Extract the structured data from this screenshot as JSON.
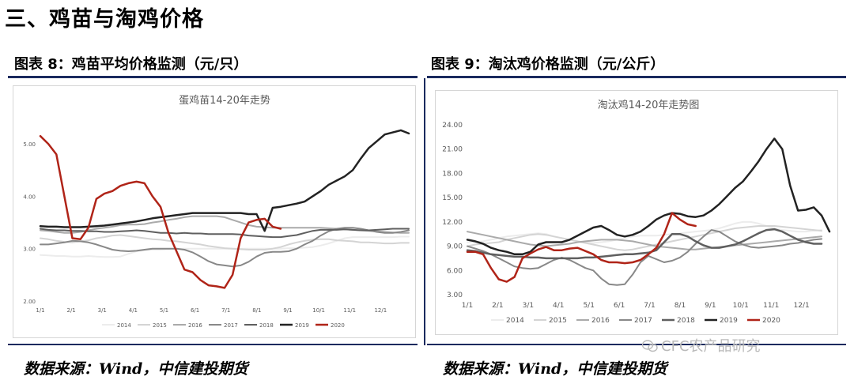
{
  "section_title": "三、鸡苗与淘鸡价格",
  "charts_meta": [
    {
      "figure_title": "图表 8：鸡苗平均价格监测（元/只）",
      "source": "数据来源：Wind，中信建投期货"
    },
    {
      "figure_title": "图表 9：淘汰鸡价格监测（元/公斤）",
      "source": "数据来源：Wind，中信建投期货"
    }
  ],
  "watermark": "CFC农产品研究",
  "chart_data": [
    {
      "type": "line",
      "title": "蛋鸡苗14-20年走势",
      "ylim": [
        2.0,
        5.5
      ],
      "y_ticks": [
        "2.00",
        "3.00",
        "4.00",
        "5.00"
      ],
      "x_ticks": [
        "1/1",
        "2/1",
        "3/1",
        "4/1",
        "5/1",
        "6/1",
        "7/1",
        "8/1",
        "9/1",
        "10/1",
        "11/1",
        "12/1"
      ],
      "legend_position": "bottom",
      "series": [
        {
          "name": "2014",
          "color": "#ececec",
          "width": 2,
          "values": [
            2.88,
            2.87,
            2.86,
            2.86,
            2.85,
            2.85,
            2.86,
            2.85,
            2.84,
            2.84,
            2.85,
            2.9,
            2.95,
            2.97,
            2.98,
            2.98,
            2.99,
            3.0,
            3.0,
            3.0,
            3.0,
            3.0,
            3.0,
            3.0,
            3.0,
            3.0,
            3.0,
            3.0,
            3.0,
            3.0,
            3.0,
            3.01,
            3.01,
            3.02,
            3.03,
            3.06,
            3.1,
            3.15,
            3.2,
            3.22,
            3.22,
            3.22,
            3.22,
            3.22,
            3.22,
            3.23,
            3.23
          ]
        },
        {
          "name": "2015",
          "color": "#d4d4d4",
          "width": 2,
          "values": [
            3.2,
            3.18,
            3.15,
            3.13,
            3.12,
            3.14,
            3.16,
            3.2,
            3.22,
            3.25,
            3.26,
            3.24,
            3.22,
            3.2,
            3.18,
            3.17,
            3.15,
            3.14,
            3.12,
            3.1,
            3.08,
            3.05,
            3.03,
            3.01,
            3.0,
            2.99,
            2.98,
            2.98,
            2.98,
            3.0,
            3.03,
            3.08,
            3.12,
            3.15,
            3.17,
            3.18,
            3.18,
            3.16,
            3.15,
            3.14,
            3.12,
            3.12,
            3.11,
            3.1,
            3.1,
            3.11,
            3.11
          ]
        },
        {
          "name": "2016",
          "color": "#aaaaaa",
          "width": 2,
          "values": [
            3.35,
            3.34,
            3.32,
            3.3,
            3.3,
            3.32,
            3.35,
            3.38,
            3.4,
            3.42,
            3.45,
            3.46,
            3.46,
            3.47,
            3.5,
            3.52,
            3.55,
            3.57,
            3.6,
            3.62,
            3.62,
            3.62,
            3.62,
            3.6,
            3.55,
            3.5,
            3.45,
            3.42,
            3.41,
            3.4,
            3.4,
            3.4,
            3.4,
            3.4,
            3.4,
            3.4,
            3.39,
            3.38,
            3.37,
            3.36,
            3.35,
            3.34,
            3.33,
            3.32,
            3.31,
            3.3,
            3.3
          ]
        },
        {
          "name": "2017",
          "color": "#888888",
          "width": 2,
          "values": [
            3.08,
            3.08,
            3.1,
            3.12,
            3.15,
            3.14,
            3.12,
            3.08,
            3.03,
            2.98,
            2.96,
            2.95,
            2.96,
            2.98,
            3.0,
            3.0,
            3.0,
            3.0,
            2.98,
            2.93,
            2.85,
            2.76,
            2.7,
            2.68,
            2.66,
            2.68,
            2.75,
            2.85,
            2.92,
            2.94,
            2.94,
            2.95,
            3.0,
            3.08,
            3.15,
            3.25,
            3.33,
            3.38,
            3.4,
            3.4,
            3.38,
            3.35,
            3.32,
            3.3,
            3.3,
            3.32,
            3.35
          ]
        },
        {
          "name": "2018",
          "color": "#5f5f5f",
          "width": 2,
          "values": [
            3.38,
            3.36,
            3.35,
            3.35,
            3.34,
            3.34,
            3.33,
            3.33,
            3.32,
            3.32,
            3.33,
            3.34,
            3.35,
            3.34,
            3.32,
            3.3,
            3.3,
            3.29,
            3.3,
            3.29,
            3.29,
            3.28,
            3.28,
            3.28,
            3.28,
            3.27,
            3.25,
            3.24,
            3.23,
            3.22,
            3.22,
            3.24,
            3.26,
            3.3,
            3.34,
            3.36,
            3.36,
            3.36,
            3.37,
            3.36,
            3.35,
            3.35,
            3.36,
            3.37,
            3.38,
            3.38,
            3.38
          ]
        },
        {
          "name": "2019",
          "color": "#222222",
          "width": 2.5,
          "values": [
            3.43,
            3.42,
            3.42,
            3.41,
            3.41,
            3.41,
            3.42,
            3.43,
            3.44,
            3.46,
            3.48,
            3.5,
            3.52,
            3.55,
            3.58,
            3.6,
            3.62,
            3.64,
            3.66,
            3.68,
            3.68,
            3.68,
            3.68,
            3.68,
            3.68,
            3.68,
            3.66,
            3.66,
            3.34,
            3.78,
            3.8,
            3.83,
            3.86,
            3.9,
            4.0,
            4.1,
            4.22,
            4.3,
            4.38,
            4.5,
            4.72,
            4.92,
            5.05,
            5.18,
            5.22,
            5.26,
            5.2
          ]
        },
        {
          "name": "2020",
          "color": "#b02418",
          "width": 2.5,
          "values": [
            5.15,
            5.0,
            4.8,
            4.0,
            3.2,
            3.18,
            3.4,
            3.95,
            4.05,
            4.1,
            4.2,
            4.25,
            4.28,
            4.25,
            4.0,
            3.8,
            3.3,
            2.95,
            2.6,
            2.55,
            2.4,
            2.3,
            2.28,
            2.25,
            2.5,
            3.2,
            3.5,
            3.55,
            3.57,
            3.42,
            3.38
          ]
        }
      ]
    },
    {
      "type": "line",
      "title": "淘汰鸡14-20年走势图",
      "ylim": [
        3.0,
        24.0
      ],
      "y_ticks": [
        "3.00",
        "6.00",
        "9.00",
        "12.00",
        "15.00",
        "18.00",
        "21.00",
        "24.00"
      ],
      "x_ticks": [
        "1/1",
        "2/1",
        "3/1",
        "4/1",
        "5/1",
        "6/1",
        "7/1",
        "8/1",
        "9/1",
        "10/1",
        "11/1",
        "12/1"
      ],
      "legend_position": "bottom",
      "series": [
        {
          "name": "2014",
          "color": "#ececec",
          "width": 2,
          "values": [
            9.5,
            9.5,
            9.6,
            9.8,
            10.0,
            10.2,
            10.3,
            10.4,
            10.5,
            10.6,
            10.5,
            10.2,
            10.0,
            9.8,
            9.6,
            9.5,
            9.4,
            9.5,
            9.6,
            9.8,
            10.0,
            10.2,
            10.3,
            10.3,
            10.3,
            10.4,
            10.5,
            10.6,
            10.7,
            10.8,
            10.9,
            11.0,
            11.2,
            11.5,
            11.8,
            12.0,
            12.0,
            11.8,
            11.5,
            11.2,
            11.0,
            10.9,
            10.8,
            10.8,
            10.9,
            11.0
          ]
        },
        {
          "name": "2015",
          "color": "#d4d4d4",
          "width": 2,
          "values": [
            9.0,
            9.2,
            9.3,
            9.4,
            9.5,
            9.8,
            10.0,
            10.2,
            10.4,
            10.5,
            10.4,
            10.2,
            10.0,
            9.8,
            9.6,
            9.4,
            9.2,
            9.0,
            8.8,
            8.6,
            8.5,
            8.6,
            8.8,
            9.0,
            9.2,
            9.4,
            9.6,
            9.8,
            10.0,
            10.2,
            10.4,
            10.6,
            10.8,
            11.0,
            11.2,
            11.3,
            11.4,
            11.5,
            11.5,
            11.5,
            11.4,
            11.3,
            11.2,
            11.1,
            11.0,
            10.9
          ]
        },
        {
          "name": "2016",
          "color": "#aaaaaa",
          "width": 2,
          "values": [
            10.8,
            10.6,
            10.4,
            10.2,
            10.0,
            9.8,
            9.6,
            9.4,
            9.2,
            9.1,
            9.0,
            9.1,
            9.2,
            9.3,
            9.5,
            9.6,
            9.7,
            9.8,
            9.8,
            9.8,
            9.7,
            9.6,
            9.4,
            9.2,
            9.0,
            8.9,
            8.8,
            8.7,
            8.6,
            8.6,
            8.7,
            8.8,
            8.9,
            9.0,
            9.1,
            9.2,
            9.3,
            9.4,
            9.5,
            9.6,
            9.7,
            9.8,
            9.9,
            10.0,
            10.1,
            10.2
          ]
        },
        {
          "name": "2017",
          "color": "#888888",
          "width": 2,
          "values": [
            9.0,
            8.7,
            8.4,
            8.0,
            7.5,
            7.0,
            6.5,
            6.3,
            6.2,
            6.3,
            6.8,
            7.3,
            7.6,
            7.3,
            6.8,
            6.3,
            6.0,
            5.0,
            4.3,
            4.2,
            4.3,
            5.5,
            7.0,
            7.8,
            7.4,
            7.0,
            7.2,
            7.6,
            8.3,
            9.3,
            10.2,
            11.0,
            10.8,
            10.2,
            9.6,
            9.2,
            8.9,
            8.8,
            8.9,
            9.0,
            9.1,
            9.3,
            9.4,
            9.6,
            9.8,
            9.9
          ]
        },
        {
          "name": "2018",
          "color": "#5f5f5f",
          "width": 2.5,
          "values": [
            8.5,
            8.4,
            8.2,
            8.0,
            7.9,
            7.8,
            7.7,
            7.7,
            7.6,
            7.6,
            7.5,
            7.5,
            7.5,
            7.5,
            7.5,
            7.6,
            7.6,
            7.7,
            7.8,
            7.9,
            8.0,
            8.0,
            8.1,
            8.2,
            8.5,
            9.5,
            10.5,
            10.5,
            10.2,
            9.6,
            9.1,
            8.8,
            8.8,
            9.0,
            9.2,
            9.6,
            10.1,
            10.6,
            11.0,
            11.1,
            10.8,
            10.3,
            9.8,
            9.5,
            9.3,
            9.3
          ]
        },
        {
          "name": "2019",
          "color": "#222222",
          "width": 2.5,
          "values": [
            9.8,
            9.6,
            9.3,
            8.8,
            8.5,
            8.3,
            8.0,
            8.0,
            8.3,
            9.2,
            9.5,
            9.5,
            9.5,
            9.8,
            10.3,
            10.8,
            11.3,
            11.5,
            11.0,
            10.4,
            10.2,
            10.4,
            10.8,
            11.5,
            12.3,
            12.8,
            13.1,
            13.0,
            12.7,
            12.6,
            12.8,
            13.4,
            14.2,
            15.2,
            16.2,
            17.0,
            18.2,
            19.5,
            21.0,
            22.3,
            21.0,
            16.5,
            13.4,
            13.5,
            13.8,
            12.8,
            10.8
          ]
        },
        {
          "name": "2020",
          "color": "#b02418",
          "width": 2.5,
          "values": [
            8.3,
            8.3,
            8.0,
            6.3,
            4.9,
            4.6,
            5.2,
            7.5,
            8.1,
            8.6,
            8.9,
            8.5,
            8.5,
            8.7,
            8.8,
            8.4,
            8.0,
            7.3,
            7.0,
            7.0,
            6.9,
            7.0,
            7.3,
            8.0,
            8.8,
            10.5,
            13.1,
            12.3,
            11.7,
            11.5
          ]
        }
      ]
    }
  ]
}
